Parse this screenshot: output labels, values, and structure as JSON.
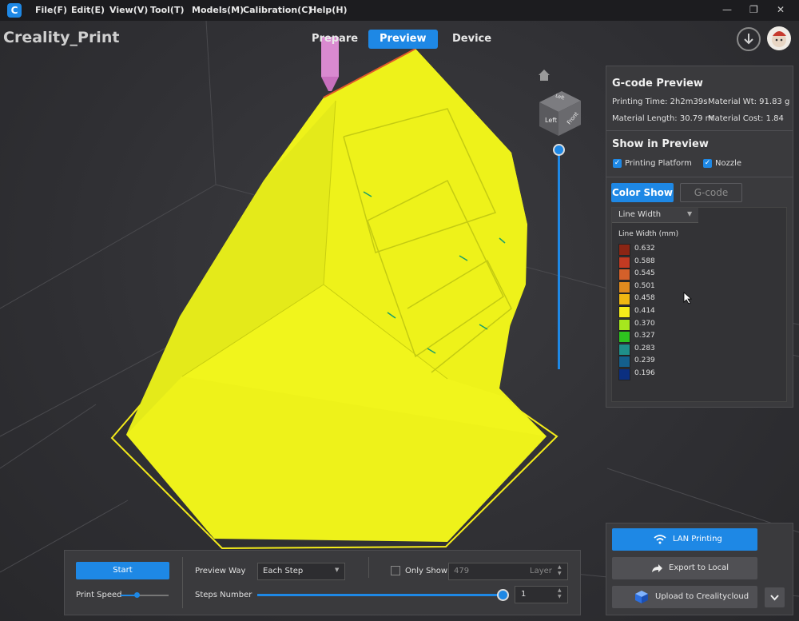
{
  "menu": {
    "logo_letter": "C",
    "items": [
      "File(F)",
      "Edit(E)",
      "View(V)",
      "Tool(T)",
      "Models(M)",
      "Calibration(C)",
      "Help(H)"
    ]
  },
  "window_controls": {
    "minimize": "—",
    "restore": "❐",
    "close": "✕"
  },
  "app": {
    "name": "Creality_Print"
  },
  "tabs": [
    {
      "label": "Prepare"
    },
    {
      "label": "Preview"
    },
    {
      "label": "Device"
    }
  ],
  "active_tab": "Preview",
  "viewcube": {
    "left_label": "Left",
    "front_label": "Front",
    "top_label": "Left"
  },
  "gcode_preview": {
    "title": "G-code Preview",
    "printing_time": "Printing Time: 2h2m39s",
    "material_wt": "Material Wt: 91.83 g",
    "material_length": "Material Length: 30.79 m",
    "material_cost": "Material Cost: 1.84"
  },
  "show_in_preview": {
    "title": "Show in Preview",
    "printing_platform": "Printing Platform",
    "nozzle": "Nozzle"
  },
  "color_show": {
    "button_color": "Color Show",
    "button_gcode": "G-code",
    "dropdown_value": "Line Width",
    "legend_title": "Line Width (mm)",
    "legend": [
      {
        "value": "0.632",
        "color": "#8b2514"
      },
      {
        "value": "0.588",
        "color": "#c23a22"
      },
      {
        "value": "0.545",
        "color": "#d4602a"
      },
      {
        "value": "0.501",
        "color": "#e08b1e"
      },
      {
        "value": "0.458",
        "color": "#f0b712"
      },
      {
        "value": "0.414",
        "color": "#f5ec1a"
      },
      {
        "value": "0.370",
        "color": "#a6e61e"
      },
      {
        "value": "0.327",
        "color": "#2ec31f"
      },
      {
        "value": "0.283",
        "color": "#1f8f8a"
      },
      {
        "value": "0.239",
        "color": "#145f8c"
      },
      {
        "value": "0.196",
        "color": "#0b2f80"
      }
    ]
  },
  "bottom_bar": {
    "start": "Start",
    "print_speed": "Print Speed",
    "preview_way_label": "Preview Way",
    "preview_way_value": "Each Step",
    "only_show": "Only Show",
    "layer_value": "479",
    "layer_unit": "Layer",
    "steps_number": "Steps Number",
    "steps_value": "1"
  },
  "actions": {
    "lan_printing": "LAN Printing",
    "export_local": "Export to Local",
    "upload_cloud": "Upload to Crealitycloud"
  },
  "colors": {
    "accent": "#1e88e5",
    "model": "#eef21a"
  }
}
